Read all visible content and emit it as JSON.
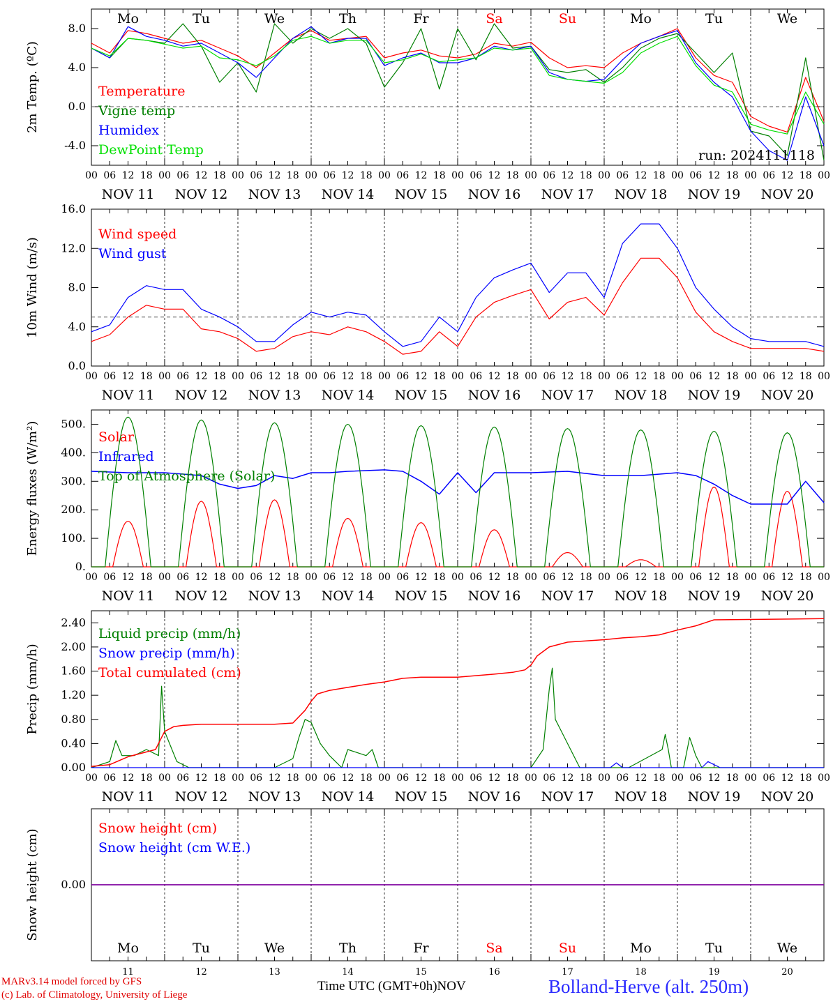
{
  "colors": {
    "temperature": "#ff0000",
    "vigne": "#008000",
    "humidex": "#0000ff",
    "dewpoint": "#00e000",
    "wind_speed": "#ff0000",
    "wind_gust": "#0000ff",
    "solar": "#ff0000",
    "infrared": "#0000ff",
    "toa": "#008000",
    "liquid": "#008000",
    "snow_precip": "#0000ff",
    "total_cum": "#ff0000",
    "snow_cm": "#ff0000",
    "snow_we": "#0000ff",
    "weekend_label": "#ff0000",
    "weekday_label": "#000000",
    "snow_line": "#8000a0"
  },
  "chart_data": [
    {
      "type": "line",
      "ylabel": "2m Temp. (ºC)",
      "ylim": [
        -6.0,
        10.0
      ],
      "yticks": [
        "8.0",
        "4.0",
        "0.0",
        "-4.0"
      ],
      "ytick_values": [
        8,
        4,
        0,
        -4
      ],
      "ref_line": 0,
      "run_label": "run: 2024111118",
      "day_labels": [
        "Mo",
        "Tu",
        "We",
        "Th",
        "Fr",
        "Sa",
        "Su",
        "Mo",
        "Tu",
        "We"
      ],
      "x_unit": "hours since 2024-11-11 00 UTC",
      "series": [
        {
          "name": "Temperature",
          "color_key": "temperature",
          "x": [
            0,
            6,
            12,
            18,
            24,
            30,
            36,
            42,
            48,
            54,
            60,
            66,
            72,
            78,
            84,
            90,
            96,
            102,
            108,
            114,
            120,
            126,
            132,
            138,
            144,
            150,
            156,
            162,
            168,
            174,
            180,
            186,
            192,
            198,
            204,
            210,
            216,
            222,
            228,
            234,
            240
          ],
          "y": [
            6.5,
            5.5,
            7.8,
            7.5,
            7.0,
            6.5,
            6.8,
            6.0,
            5.2,
            4.0,
            5.5,
            7.0,
            7.8,
            6.8,
            7.0,
            7.2,
            5.0,
            5.5,
            5.8,
            5.2,
            5.0,
            5.4,
            6.5,
            6.2,
            6.6,
            5.0,
            4.0,
            4.2,
            4.0,
            5.5,
            6.5,
            7.2,
            8.0,
            5.0,
            3.2,
            2.5,
            -1.0,
            -2.0,
            -2.6,
            3.0,
            -1.5
          ]
        },
        {
          "name": "Vigne temp",
          "color_key": "vigne",
          "x": [
            0,
            6,
            12,
            18,
            24,
            30,
            36,
            42,
            48,
            54,
            60,
            66,
            72,
            78,
            84,
            90,
            96,
            102,
            108,
            114,
            120,
            126,
            132,
            138,
            144,
            150,
            156,
            162,
            168,
            174,
            180,
            186,
            192,
            198,
            204,
            210,
            216,
            222,
            228,
            234,
            240
          ],
          "y": [
            6.0,
            5.0,
            7.0,
            6.8,
            6.5,
            8.5,
            6.2,
            2.5,
            4.5,
            1.5,
            8.5,
            6.5,
            8.0,
            7.0,
            8.0,
            6.5,
            2.0,
            4.5,
            8.0,
            1.8,
            8.0,
            4.8,
            8.5,
            6.0,
            6.2,
            3.8,
            3.5,
            3.8,
            2.5,
            4.0,
            6.0,
            7.0,
            7.5,
            5.5,
            3.5,
            5.5,
            -2.5,
            -3.0,
            -5.0,
            5.0,
            -5.5
          ]
        },
        {
          "name": "Humidex",
          "color_key": "humidex",
          "x": [
            0,
            6,
            12,
            18,
            24,
            30,
            36,
            42,
            48,
            54,
            60,
            66,
            72,
            78,
            84,
            90,
            96,
            102,
            108,
            114,
            120,
            126,
            132,
            138,
            144,
            150,
            156,
            162,
            168,
            174,
            180,
            186,
            192,
            198,
            204,
            210,
            216,
            222,
            228,
            234,
            240
          ],
          "y": [
            6.0,
            5.0,
            8.2,
            7.2,
            6.8,
            6.2,
            6.5,
            5.5,
            4.5,
            3.0,
            5.0,
            7.0,
            8.2,
            6.5,
            7.0,
            7.0,
            4.2,
            5.0,
            5.5,
            4.5,
            4.5,
            5.0,
            6.2,
            5.8,
            6.2,
            3.5,
            2.8,
            2.6,
            2.8,
            4.8,
            6.5,
            7.2,
            7.8,
            4.5,
            2.5,
            1.0,
            -2.5,
            -4.5,
            -5.5,
            1.0,
            -4.0
          ]
        },
        {
          "name": "DewPoint Temp",
          "color_key": "dewpoint",
          "x": [
            0,
            6,
            12,
            18,
            24,
            30,
            36,
            42,
            48,
            54,
            60,
            66,
            72,
            78,
            84,
            90,
            96,
            102,
            108,
            114,
            120,
            126,
            132,
            138,
            144,
            150,
            156,
            162,
            168,
            174,
            180,
            186,
            192,
            198,
            204,
            210,
            216,
            222,
            228,
            234,
            240
          ],
          "y": [
            6.0,
            5.2,
            7.0,
            6.8,
            6.4,
            6.0,
            6.2,
            5.0,
            4.8,
            4.2,
            5.2,
            6.8,
            7.2,
            6.5,
            6.8,
            6.8,
            4.5,
            4.8,
            5.4,
            4.6,
            4.8,
            5.0,
            6.0,
            5.8,
            6.0,
            3.2,
            2.8,
            2.6,
            2.4,
            3.5,
            5.5,
            6.5,
            7.2,
            4.2,
            2.2,
            1.5,
            -1.8,
            -2.4,
            -2.8,
            1.5,
            -1.8
          ]
        }
      ]
    },
    {
      "type": "line",
      "ylabel": "10m Wind (m/s)",
      "ylim": [
        0,
        16
      ],
      "yticks": [
        "16.0",
        "12.0",
        "8.0",
        "4.0",
        "0.0"
      ],
      "ytick_values": [
        16,
        12,
        8,
        4,
        0
      ],
      "ref_line": 5,
      "x_unit": "hours since 2024-11-11 00 UTC",
      "series": [
        {
          "name": "Wind speed",
          "color_key": "wind_speed",
          "x": [
            0,
            6,
            12,
            18,
            24,
            30,
            36,
            42,
            48,
            54,
            60,
            66,
            72,
            78,
            84,
            90,
            96,
            102,
            108,
            114,
            120,
            126,
            132,
            138,
            144,
            150,
            156,
            162,
            168,
            174,
            180,
            186,
            192,
            198,
            204,
            210,
            216,
            222,
            228,
            234,
            240
          ],
          "y": [
            2.5,
            3.2,
            5.0,
            6.2,
            5.8,
            5.8,
            3.8,
            3.5,
            2.8,
            1.5,
            1.8,
            3.0,
            3.5,
            3.2,
            4.0,
            3.5,
            2.5,
            1.2,
            1.5,
            3.5,
            2.0,
            5.0,
            6.5,
            7.2,
            7.8,
            4.8,
            6.5,
            7.0,
            5.2,
            8.5,
            11.0,
            11.0,
            9.0,
            5.5,
            3.5,
            2.5,
            1.8,
            1.8,
            1.8,
            1.8,
            1.5
          ]
        },
        {
          "name": "Wind gust",
          "color_key": "wind_gust",
          "x": [
            0,
            6,
            12,
            18,
            24,
            30,
            36,
            42,
            48,
            54,
            60,
            66,
            72,
            78,
            84,
            90,
            96,
            102,
            108,
            114,
            120,
            126,
            132,
            138,
            144,
            150,
            156,
            162,
            168,
            174,
            180,
            186,
            192,
            198,
            204,
            210,
            216,
            222,
            228,
            234,
            240
          ],
          "y": [
            3.5,
            4.2,
            7.0,
            8.2,
            7.8,
            7.8,
            5.8,
            5.0,
            4.0,
            2.5,
            2.5,
            4.2,
            5.5,
            5.0,
            5.5,
            5.2,
            3.5,
            2.0,
            2.5,
            5.0,
            3.5,
            7.0,
            9.0,
            9.8,
            10.5,
            7.5,
            9.5,
            9.5,
            7.0,
            12.5,
            14.5,
            14.5,
            12.0,
            8.0,
            5.8,
            4.0,
            2.8,
            2.5,
            2.5,
            2.5,
            2.0
          ]
        }
      ]
    },
    {
      "type": "line",
      "ylabel": "Energy fluxes (W/m²)",
      "ylim": [
        0,
        550
      ],
      "yticks": [
        "500.",
        "400.",
        "300.",
        "200.",
        "100.",
        "0."
      ],
      "ytick_values": [
        500,
        400,
        300,
        200,
        100,
        0
      ],
      "x_unit": "hours since 2024-11-11 00 UTC",
      "noon_peaks": {
        "hours": [
          12,
          36,
          60,
          84,
          108,
          132,
          156,
          180,
          204,
          228
        ],
        "toa": [
          525,
          515,
          505,
          500,
          495,
          490,
          485,
          480,
          475,
          470
        ],
        "solar": [
          160,
          230,
          235,
          170,
          155,
          130,
          50,
          25,
          280,
          265
        ]
      },
      "series": [
        {
          "name": "Solar",
          "color_key": "solar"
        },
        {
          "name": "Infrared",
          "color_key": "infrared",
          "x": [
            0,
            12,
            24,
            30,
            36,
            42,
            48,
            54,
            60,
            66,
            72,
            78,
            84,
            96,
            102,
            108,
            114,
            120,
            126,
            132,
            144,
            156,
            168,
            180,
            192,
            198,
            204,
            210,
            216,
            228,
            234,
            240
          ],
          "y": [
            335,
            330,
            330,
            325,
            320,
            290,
            275,
            285,
            320,
            310,
            330,
            330,
            335,
            340,
            335,
            300,
            255,
            330,
            260,
            330,
            330,
            335,
            320,
            320,
            330,
            320,
            290,
            250,
            220,
            220,
            300,
            225
          ]
        },
        {
          "name": "Top of Atmosphere (Solar)",
          "color_key": "toa"
        }
      ]
    },
    {
      "type": "line",
      "ylabel": "Precip (mm/h)",
      "ylim": [
        0,
        2.6
      ],
      "yticks": [
        "2.40",
        "2.00",
        "1.60",
        "1.20",
        "0.80",
        "0.40",
        "0.00"
      ],
      "ytick_values": [
        2.4,
        2.0,
        1.6,
        1.2,
        0.8,
        0.4,
        0.0
      ],
      "x_unit": "hours since 2024-11-11 00 UTC",
      "series": [
        {
          "name": "Liquid precip (mm/h)",
          "color_key": "liquid",
          "x": [
            0,
            6,
            8,
            10,
            14,
            18,
            22,
            23,
            24,
            28,
            32,
            36,
            60,
            66,
            68,
            70,
            72,
            75,
            78,
            80,
            82,
            84,
            90,
            92,
            94,
            96,
            100,
            144,
            148,
            150,
            151,
            152,
            154,
            156,
            160,
            168,
            176,
            187,
            188,
            189,
            190,
            194,
            196,
            198,
            200,
            204,
            240
          ],
          "y": [
            0.0,
            0.1,
            0.45,
            0.2,
            0.2,
            0.3,
            0.2,
            1.35,
            0.6,
            0.1,
            0.0,
            0.0,
            0.0,
            0.15,
            0.5,
            0.8,
            0.75,
            0.4,
            0.2,
            0.1,
            0.0,
            0.3,
            0.2,
            0.3,
            0.0,
            0.0,
            0.0,
            0.0,
            0.3,
            1.3,
            1.65,
            0.8,
            0.6,
            0.4,
            0.0,
            0.0,
            0.0,
            0.3,
            0.55,
            0.3,
            0.0,
            0.0,
            0.5,
            0.2,
            0.0,
            0.0,
            0.0
          ]
        },
        {
          "name": "Snow precip (mm/h)",
          "color_key": "snow_precip",
          "x": [
            0,
            170,
            172,
            174,
            200,
            202,
            204,
            206,
            240
          ],
          "y": [
            0,
            0,
            0.08,
            0,
            0,
            0.1,
            0.05,
            0,
            0
          ]
        },
        {
          "name": "Total cumulated (cm)",
          "color_key": "total_cum",
          "x": [
            0,
            6,
            12,
            18,
            21,
            23,
            24,
            27,
            30,
            36,
            48,
            60,
            66,
            70,
            72,
            74,
            78,
            84,
            90,
            96,
            102,
            108,
            114,
            120,
            132,
            138,
            142,
            144,
            146,
            150,
            156,
            168,
            174,
            180,
            186,
            192,
            198,
            204,
            240
          ],
          "y": [
            0.02,
            0.05,
            0.18,
            0.26,
            0.3,
            0.5,
            0.6,
            0.68,
            0.7,
            0.72,
            0.72,
            0.72,
            0.74,
            0.95,
            1.1,
            1.22,
            1.28,
            1.33,
            1.38,
            1.42,
            1.48,
            1.5,
            1.5,
            1.5,
            1.55,
            1.58,
            1.62,
            1.7,
            1.85,
            2.0,
            2.08,
            2.12,
            2.15,
            2.17,
            2.2,
            2.28,
            2.35,
            2.45,
            2.47
          ]
        }
      ]
    },
    {
      "type": "line",
      "ylabel": "Snow height (cm)",
      "ylim": [
        -1,
        1
      ],
      "yticks": [
        "0.00"
      ],
      "ytick_values": [
        0
      ],
      "x_unit": "hours since 2024-11-11 00 UTC",
      "series": [
        {
          "name": "Snow height (cm)",
          "color_key": "snow_cm",
          "x": [
            0,
            240
          ],
          "y": [
            0,
            0
          ]
        },
        {
          "name": "Snow height (cm W.E.)",
          "color_key": "snow_we",
          "x": [
            0,
            240
          ],
          "y": [
            0,
            0
          ]
        }
      ]
    }
  ],
  "x_axis": {
    "hour_ticks": [
      "00",
      "06",
      "12",
      "18"
    ],
    "final_hour_tick": "00",
    "date_labels": [
      "NOV 11",
      "NOV 12",
      "NOV 13",
      "NOV 14",
      "NOV 15",
      "NOV 16",
      "NOV 17",
      "NOV 18",
      "NOV 19",
      "NOV 20"
    ],
    "day_numbers": [
      "11",
      "12",
      "13",
      "14",
      "15",
      "16",
      "17",
      "18",
      "19",
      "20"
    ],
    "day_labels": [
      "Mo",
      "Tu",
      "We",
      "Th",
      "Fr",
      "Sa",
      "Su",
      "Mo",
      "Tu",
      "We"
    ],
    "weekend_days": [
      5,
      6
    ]
  },
  "footer": {
    "credit_line1": "MARv3.14 model forced by GFS",
    "credit_line2": "(c) Lab. of Climatology, University of Liege",
    "time_axis": "Time UTC (GMT+0h)",
    "month": "NOV",
    "station": "Bolland-Herve (alt. 250m)"
  }
}
